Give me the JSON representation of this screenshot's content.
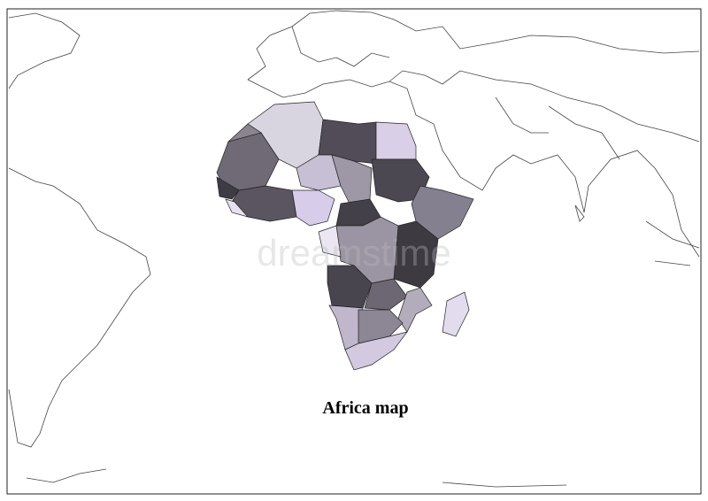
{
  "title": "Africa map",
  "watermark": "dreamstime"
}
